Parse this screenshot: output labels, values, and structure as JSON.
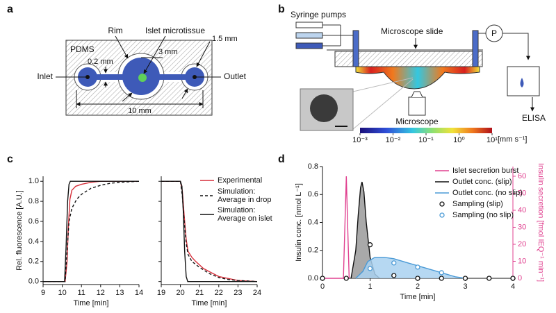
{
  "panel_labels": [
    "a",
    "b",
    "c",
    "d"
  ],
  "diagram_a": {
    "pdms": "PDMS",
    "rim": "Rim",
    "islet": "Islet microtissue",
    "inlet": "Inlet",
    "outlet": "Outlet",
    "dim_rim": "0.2 mm",
    "dim_chamber": "3 mm",
    "dim_port": "1.5 mm",
    "dim_length": "10 mm"
  },
  "diagram_b": {
    "syringe": "Syringe pumps",
    "slide": "Microscope slide",
    "pump": "P",
    "microscope": "Microscope",
    "elisa": "ELISA",
    "colorbar": {
      "log": true,
      "lim": [
        0.001,
        10
      ],
      "ticks": [
        {
          "value": 0.001,
          "label": "10⁻³"
        },
        {
          "value": 0.01,
          "label": "10⁻²"
        },
        {
          "value": 0.1,
          "label": "10⁻¹"
        },
        {
          "value": 1,
          "label": "10⁰"
        },
        {
          "value": 10,
          "label": "10¹"
        }
      ],
      "unit": "[mm s⁻¹]"
    }
  },
  "chart_data": [
    {
      "type": "line",
      "xlabel": "Time [min]",
      "ylabel": "Rel. fluorescence [A.U.]",
      "xlim": [
        9,
        14
      ],
      "xticks": [
        9,
        10,
        11,
        12,
        13,
        14
      ],
      "ylim": [
        -0.03,
        1.05
      ],
      "yticks": [
        {
          "value": 0,
          "label": "0.0"
        },
        0.2,
        0.4,
        0.6,
        0.8,
        {
          "value": 1,
          "label": "1.0"
        }
      ],
      "series": [
        {
          "color": "#d62f3a",
          "x": [
            9,
            10.15,
            10.25,
            10.32,
            10.4,
            10.5,
            10.7,
            11,
            11.5,
            12,
            13,
            14
          ],
          "values": [
            0,
            0,
            0.2,
            0.55,
            0.82,
            0.91,
            0.95,
            0.97,
            0.99,
            1.0,
            1.0,
            1.0
          ]
        },
        {
          "color": "#111111",
          "dash": true,
          "x": [
            9,
            10.15,
            10.25,
            10.35,
            10.5,
            10.75,
            11,
            11.5,
            12,
            12.5,
            13,
            14
          ],
          "values": [
            0,
            0,
            0.3,
            0.6,
            0.73,
            0.82,
            0.87,
            0.93,
            0.96,
            0.98,
            0.99,
            1.0
          ]
        },
        {
          "color": "#111111",
          "x": [
            9,
            10.12,
            10.2,
            10.28,
            10.35,
            10.42,
            14
          ],
          "values": [
            0,
            0,
            0.35,
            0.8,
            0.97,
            1.0,
            1.0
          ]
        }
      ]
    },
    {
      "type": "line",
      "xlabel": "Time [min]",
      "legend": "upper right",
      "xlim": [
        19,
        24
      ],
      "xticks": [
        19,
        20,
        21,
        22,
        23,
        24
      ],
      "ylim": [
        -0.03,
        1.05
      ],
      "yticks": [
        0,
        0.2,
        0.4,
        0.6,
        0.8,
        1
      ],
      "ytick_labels": false,
      "series": [
        {
          "name": "Experimental",
          "color": "#d62f3a",
          "x": [
            19,
            20.0,
            20.1,
            20.2,
            20.3,
            20.4,
            20.6,
            20.8,
            21.2,
            21.6,
            22,
            22.5,
            23,
            24
          ],
          "values": [
            1.0,
            1.0,
            0.9,
            0.65,
            0.42,
            0.3,
            0.24,
            0.2,
            0.13,
            0.09,
            0.05,
            0.03,
            0.01,
            0.0
          ]
        },
        {
          "name": "Simulation: Average in drop",
          "color": "#111111",
          "dash": true,
          "x": [
            19,
            20.0,
            20.1,
            20.2,
            20.3,
            20.4,
            20.6,
            21,
            21.5,
            22,
            22.5,
            23,
            24
          ],
          "values": [
            1.0,
            1.0,
            0.85,
            0.6,
            0.38,
            0.27,
            0.2,
            0.14,
            0.08,
            0.04,
            0.02,
            0.01,
            0.0
          ]
        },
        {
          "name": "Simulation: Average on islet",
          "color": "#111111",
          "x": [
            19,
            20.0,
            20.08,
            20.15,
            20.22,
            20.3,
            20.38,
            24
          ],
          "values": [
            1.0,
            1.0,
            0.95,
            0.7,
            0.3,
            0.05,
            0.0,
            0.0
          ]
        }
      ]
    },
    {
      "type": "line",
      "xlabel": "Time [min]",
      "ylabel": "Insulin conc. [nmol L⁻¹]",
      "y2label": "Insulin secretion [fmol IEQ⁻¹ min⁻¹]",
      "y2color": "#e0408f",
      "legend": "upper right",
      "xlim": [
        0,
        4
      ],
      "xticks": [
        0,
        1,
        2,
        3,
        4
      ],
      "ylim": [
        0,
        0.8
      ],
      "yticks": [
        {
          "value": 0,
          "label": "0.0"
        },
        0.2,
        0.4,
        0.6,
        0.8
      ],
      "y2lim": [
        0,
        65.7
      ],
      "y2ticks": [
        0,
        10,
        20,
        30,
        40,
        50,
        60
      ],
      "series": [
        {
          "name": "Islet secretion burst",
          "color": "#e0408f",
          "axis": "y2",
          "x": [
            0,
            0.44,
            0.47,
            0.5,
            0.53,
            0.56
          ],
          "values": [
            0,
            0,
            30,
            60,
            30,
            0
          ]
        },
        {
          "name": "Outlet conc. (slip)",
          "color": "#111111",
          "fill": "#9a9a9a",
          "x": [
            0.6,
            0.7,
            0.75,
            0.8,
            0.83,
            0.87,
            0.92,
            1.0,
            1.1,
            1.2
          ],
          "values": [
            0,
            0.2,
            0.45,
            0.65,
            0.69,
            0.62,
            0.4,
            0.15,
            0.03,
            0
          ]
        },
        {
          "name": "Outlet conc. (no slip)",
          "color": "#4a9ad6",
          "fill": "#a9d1f0",
          "x": [
            0.7,
            0.85,
            0.95,
            1.1,
            1.3,
            1.5,
            1.8,
            2.1,
            2.5,
            2.8,
            3.0
          ],
          "values": [
            0,
            0.05,
            0.12,
            0.15,
            0.15,
            0.14,
            0.11,
            0.08,
            0.04,
            0.01,
            0
          ]
        },
        {
          "name": "Sampling (slip)",
          "color": "#111111",
          "marker": "circle",
          "x": [
            0,
            0.5,
            1,
            1.5,
            2,
            2.5,
            3,
            3.5,
            4
          ],
          "values": [
            0,
            0,
            0.24,
            0.02,
            0,
            0,
            0,
            0,
            0
          ]
        },
        {
          "name": "Sampling (no slip)",
          "color": "#4a9ad6",
          "marker": "circle",
          "x": [
            1.0,
            1.5,
            2.0,
            2.5
          ],
          "values": [
            0.07,
            0.11,
            0.08,
            0.04
          ]
        }
      ]
    }
  ]
}
